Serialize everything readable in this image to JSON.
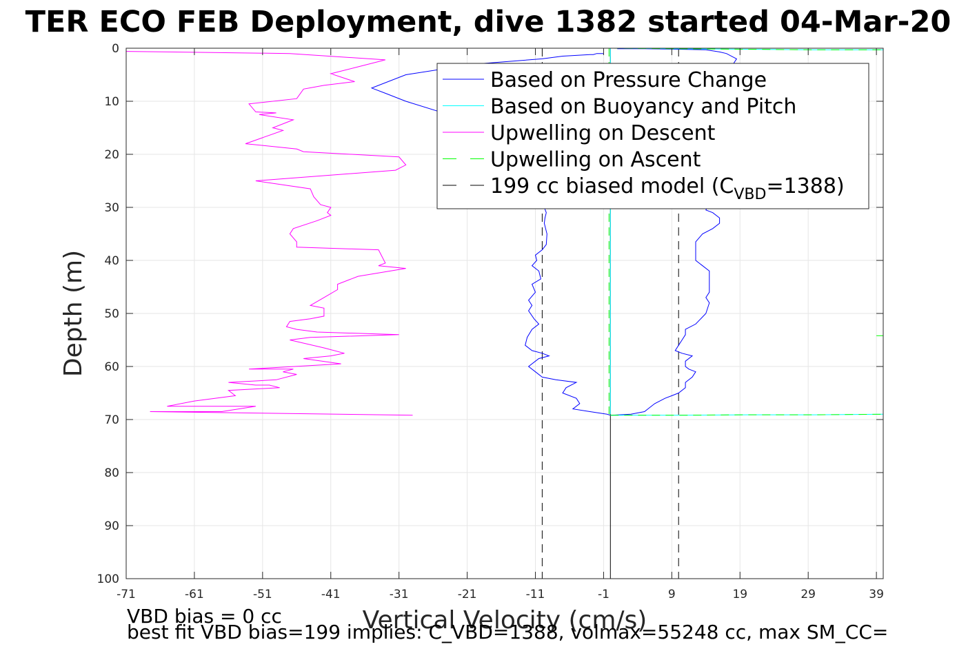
{
  "figure": {
    "title": "TER ECO FEB Deployment, dive 1382 started 04-Mar-20",
    "footer_line1": "VBD bias = 0 cc",
    "footer_line2": "best fit VBD bias=199 implies: C_VBD=1388, volmax=55248 cc, max SM_CC="
  },
  "chart_data": {
    "type": "line",
    "xlabel": "Vertical Velocity (cm/s)",
    "ylabel": "Depth (m)",
    "xlim": [
      -71,
      40
    ],
    "ylim": [
      0,
      100
    ],
    "y_reversed": true,
    "grid": true,
    "x_ticks": [
      -71,
      -61,
      -51,
      -41,
      -31,
      -21,
      -11,
      -1,
      9,
      19,
      29,
      39
    ],
    "y_ticks": [
      0,
      10,
      20,
      30,
      40,
      50,
      60,
      70,
      80,
      90,
      100
    ],
    "legend": {
      "placement": "top-right",
      "entries": [
        {
          "label": "Based on Pressure Change",
          "color": "#0000ff",
          "dash": "solid"
        },
        {
          "label": "Based on Buoyancy and Pitch",
          "color": "#00ffff",
          "dash": "solid"
        },
        {
          "label": "Upwelling on Descent",
          "color": "#ff00ff",
          "dash": "solid"
        },
        {
          "label": "Upwelling on Ascent",
          "color": "#00ff00",
          "dash": "dashed"
        },
        {
          "label": "199 cc biased model (C",
          "sub": "VBD",
          "suffix": "=1388)",
          "color": "#000000",
          "dash": "dashed"
        }
      ]
    },
    "series": [
      {
        "name": "Based on Pressure Change",
        "color": "#0000ff",
        "segments": [
          [
            [
              -1.0,
              1.0
            ],
            [
              -2.0,
              1.0
            ],
            [
              -2.5,
              1.2
            ],
            [
              -3.0,
              1.2
            ],
            [
              -7.0,
              1.5
            ],
            [
              -10.0,
              2.0
            ],
            [
              -20.0,
              3.0
            ],
            [
              -30.0,
              5.0
            ],
            [
              -35.0,
              7.5
            ],
            [
              -33.0,
              8.5
            ],
            [
              -30.0,
              10.0
            ],
            [
              -25.0,
              12.0
            ],
            [
              -22.0,
              13.0
            ],
            [
              -20.0,
              13.5
            ],
            [
              -15.0,
              15.0
            ],
            [
              -12.0,
              16.0
            ],
            [
              -10.0,
              17.0
            ],
            [
              -10.0,
              18.0
            ],
            [
              -9.8,
              20.0
            ],
            [
              -9.5,
              22.0
            ],
            [
              -9.5,
              25.0
            ],
            [
              -9.7,
              27.0
            ],
            [
              -9.7,
              30.0
            ],
            [
              -9.4,
              31.0
            ],
            [
              -9.6,
              32.0
            ],
            [
              -9.7,
              33.0
            ],
            [
              -9.3,
              35.0
            ],
            [
              -9.4,
              37.0
            ],
            [
              -10.0,
              38.0
            ],
            [
              -11.0,
              39.0
            ],
            [
              -10.8,
              40.0
            ],
            [
              -11.5,
              41.0
            ],
            [
              -10.5,
              42.0
            ],
            [
              -10.2,
              43.5
            ],
            [
              -11.5,
              44.5
            ],
            [
              -11.0,
              46.0
            ],
            [
              -12.0,
              47.5
            ],
            [
              -11.5,
              48.5
            ],
            [
              -12.0,
              49.5
            ],
            [
              -11.2,
              51.0
            ],
            [
              -10.5,
              52.0
            ],
            [
              -11.5,
              53.0
            ],
            [
              -12.2,
              54.5
            ],
            [
              -12.5,
              56.0
            ],
            [
              -11.5,
              57.0
            ],
            [
              -10.0,
              57.5
            ],
            [
              -9.0,
              58.0
            ],
            [
              -10.5,
              58.5
            ],
            [
              -11.0,
              59.0
            ],
            [
              -12.0,
              60.0
            ],
            [
              -11.0,
              61.0
            ],
            [
              -10.0,
              62.0
            ],
            [
              -8.0,
              62.5
            ],
            [
              -5.0,
              63.0
            ],
            [
              -6.5,
              64.0
            ],
            [
              -7.0,
              65.0
            ],
            [
              -5.0,
              66.0
            ],
            [
              -4.5,
              67.0
            ],
            [
              -5.5,
              68.0
            ],
            [
              -3.0,
              68.5
            ],
            [
              -0.5,
              69.0
            ],
            [
              0.0,
              69.2
            ]
          ],
          [
            [
              0.0,
              69.2
            ],
            [
              3.0,
              69.0
            ],
            [
              5.0,
              68.5
            ],
            [
              5.5,
              68.0
            ],
            [
              6.5,
              67.0
            ],
            [
              8.0,
              66.0
            ],
            [
              9.0,
              65.5
            ],
            [
              10.0,
              65.0
            ],
            [
              11.0,
              64.0
            ],
            [
              11.0,
              63.0
            ],
            [
              12.0,
              62.0
            ],
            [
              12.5,
              61.0
            ],
            [
              11.5,
              60.5
            ],
            [
              11.0,
              60.0
            ],
            [
              11.0,
              59.0
            ],
            [
              12.0,
              58.0
            ],
            [
              10.5,
              57.5
            ],
            [
              9.5,
              57.0
            ],
            [
              10.0,
              56.0
            ],
            [
              10.5,
              55.0
            ],
            [
              11.0,
              54.0
            ],
            [
              11.0,
              53.0
            ],
            [
              12.5,
              52.0
            ],
            [
              14.0,
              50.0
            ],
            [
              14.5,
              48.0
            ],
            [
              14.0,
              47.0
            ],
            [
              14.5,
              46.0
            ],
            [
              14.5,
              44.0
            ],
            [
              14.5,
              42.0
            ],
            [
              13.5,
              41.0
            ],
            [
              12.5,
              40.0
            ],
            [
              12.5,
              38.0
            ],
            [
              12.5,
              36.5
            ],
            [
              13.5,
              35.0
            ],
            [
              15.0,
              34.0
            ],
            [
              16.0,
              33.0
            ],
            [
              16.0,
              32.0
            ],
            [
              15.0,
              31.0
            ],
            [
              14.0,
              30.5
            ],
            [
              14.5,
              29.0
            ],
            [
              16.0,
              27.0
            ],
            [
              17.0,
              24.0
            ],
            [
              17.5,
              20.0
            ],
            [
              17.5,
              15.0
            ],
            [
              18.0,
              10.0
            ],
            [
              18.0,
              6.0
            ],
            [
              17.5,
              4.0
            ],
            [
              18.5,
              2.0
            ],
            [
              17.0,
              1.0
            ],
            [
              16.0,
              0.7
            ],
            [
              14.0,
              0.3
            ],
            [
              10.0,
              0.2
            ],
            [
              5.0,
              0.1
            ],
            [
              1.0,
              0.1
            ]
          ]
        ]
      },
      {
        "name": "Based on Buoyancy and Pitch",
        "color": "#00ffff",
        "segments": [
          [
            [
              0.0,
              0.0
            ],
            [
              0.0,
              30.0
            ],
            [
              0.0,
              69.0
            ]
          ],
          [
            [
              0.0,
              0.0
            ],
            [
              10.0,
              0.1
            ],
            [
              20.0,
              0.2
            ],
            [
              30.0,
              0.3
            ],
            [
              40.0,
              0.3
            ]
          ],
          [
            [
              0.0,
              69.2
            ],
            [
              10.0,
              69.2
            ],
            [
              20.0,
              69.1
            ],
            [
              30.0,
              69.1
            ],
            [
              40.0,
              69.0
            ]
          ]
        ]
      },
      {
        "name": "Upwelling on Descent",
        "color": "#ff00ff",
        "segments": [
          [
            [
              -71.0,
              0.6
            ],
            [
              -47.0,
              1.0
            ],
            [
              -33.0,
              2.2
            ],
            [
              -37.0,
              3.5
            ],
            [
              -41.0,
              4.8
            ],
            [
              -37.5,
              6.3
            ],
            [
              -42.0,
              7.0
            ],
            [
              -45.0,
              7.7
            ],
            [
              -46.0,
              9.5
            ],
            [
              -53.0,
              10.5
            ],
            [
              -52.0,
              12.0
            ],
            [
              -49.0,
              12.2
            ],
            [
              -51.5,
              12.5
            ],
            [
              -46.5,
              13.5
            ],
            [
              -49.5,
              15.0
            ],
            [
              -48.0,
              15.5
            ],
            [
              -53.5,
              18.0
            ],
            [
              -46.0,
              19.0
            ],
            [
              -45.0,
              19.5
            ],
            [
              -31.0,
              20.5
            ],
            [
              -30.0,
              22.0
            ],
            [
              -31.5,
              23.0
            ],
            [
              -52.0,
              25.0
            ],
            [
              -44.0,
              26.5
            ],
            [
              -43.5,
              28.0
            ],
            [
              -42.5,
              29.5
            ],
            [
              -41.0,
              30.0
            ],
            [
              -41.5,
              31.0
            ],
            [
              -41.0,
              31.5
            ],
            [
              -43.0,
              32.5
            ],
            [
              -46.5,
              34.0
            ],
            [
              -47.0,
              35.0
            ],
            [
              -46.0,
              36.5
            ],
            [
              -46.0,
              37.5
            ],
            [
              -34.0,
              38.0
            ],
            [
              -33.0,
              40.5
            ],
            [
              -34.0,
              41.0
            ],
            [
              -30.0,
              41.5
            ],
            [
              -37.0,
              43.0
            ],
            [
              -40.0,
              44.5
            ],
            [
              -40.0,
              45.5
            ],
            [
              -42.0,
              47.0
            ],
            [
              -44.0,
              48.5
            ],
            [
              -42.0,
              49.0
            ],
            [
              -42.0,
              50.5
            ],
            [
              -44.0,
              51.0
            ],
            [
              -47.0,
              51.5
            ],
            [
              -47.5,
              52.5
            ],
            [
              -46.0,
              53.0
            ],
            [
              -43.0,
              53.5
            ],
            [
              -31.0,
              54.0
            ],
            [
              -44.0,
              54.5
            ],
            [
              -47.0,
              55.0
            ],
            [
              -42.0,
              56.5
            ],
            [
              -39.0,
              57.5
            ],
            [
              -41.0,
              58.0
            ],
            [
              -45.0,
              58.5
            ],
            [
              -39.5,
              59.5
            ],
            [
              -53.0,
              60.5
            ],
            [
              -46.5,
              60.5
            ],
            [
              -48.0,
              61.0
            ],
            [
              -46.0,
              61.5
            ],
            [
              -49.0,
              62.5
            ],
            [
              -56.0,
              63.0
            ],
            [
              -52.0,
              63.5
            ],
            [
              -50.0,
              63.5
            ],
            [
              -48.5,
              64.0
            ],
            [
              -56.0,
              64.5
            ],
            [
              -55.0,
              65.5
            ],
            [
              -61.0,
              66.5
            ],
            [
              -65.0,
              67.5
            ],
            [
              -52.0,
              67.5
            ],
            [
              -57.0,
              68.5
            ],
            [
              -67.5,
              68.5
            ],
            [
              -29.0,
              69.2
            ]
          ]
        ]
      },
      {
        "name": "Upwelling on Ascent",
        "color": "#00ff00",
        "dashed": true,
        "segments": [
          [
            [
              -0.2,
              0.0
            ],
            [
              -0.2,
              69.0
            ]
          ],
          [
            [
              0.0,
              0.0
            ],
            [
              10.0,
              0.1
            ],
            [
              20.0,
              0.2
            ],
            [
              30.0,
              0.3
            ],
            [
              40.0,
              0.3
            ]
          ],
          [
            [
              0.0,
              69.2
            ],
            [
              10.0,
              69.2
            ],
            [
              20.0,
              69.1
            ],
            [
              30.0,
              69.1
            ],
            [
              40.0,
              69.0
            ]
          ],
          [
            [
              39.0,
              54.2
            ],
            [
              40.0,
              54.2
            ]
          ]
        ]
      },
      {
        "name": "199 cc biased model (C_VBD=1388)",
        "color": "#000000",
        "dashed": true,
        "segments": [
          [
            [
              -10.0,
              0.0
            ],
            [
              -10.0,
              100.0
            ]
          ],
          [
            [
              10.0,
              0.0
            ],
            [
              10.0,
              100.0
            ]
          ]
        ]
      },
      {
        "name": "zero line",
        "color": "#000000",
        "dashed": false,
        "segments": [
          [
            [
              0.0,
              0.0
            ],
            [
              0.0,
              100.0
            ]
          ]
        ]
      }
    ]
  }
}
